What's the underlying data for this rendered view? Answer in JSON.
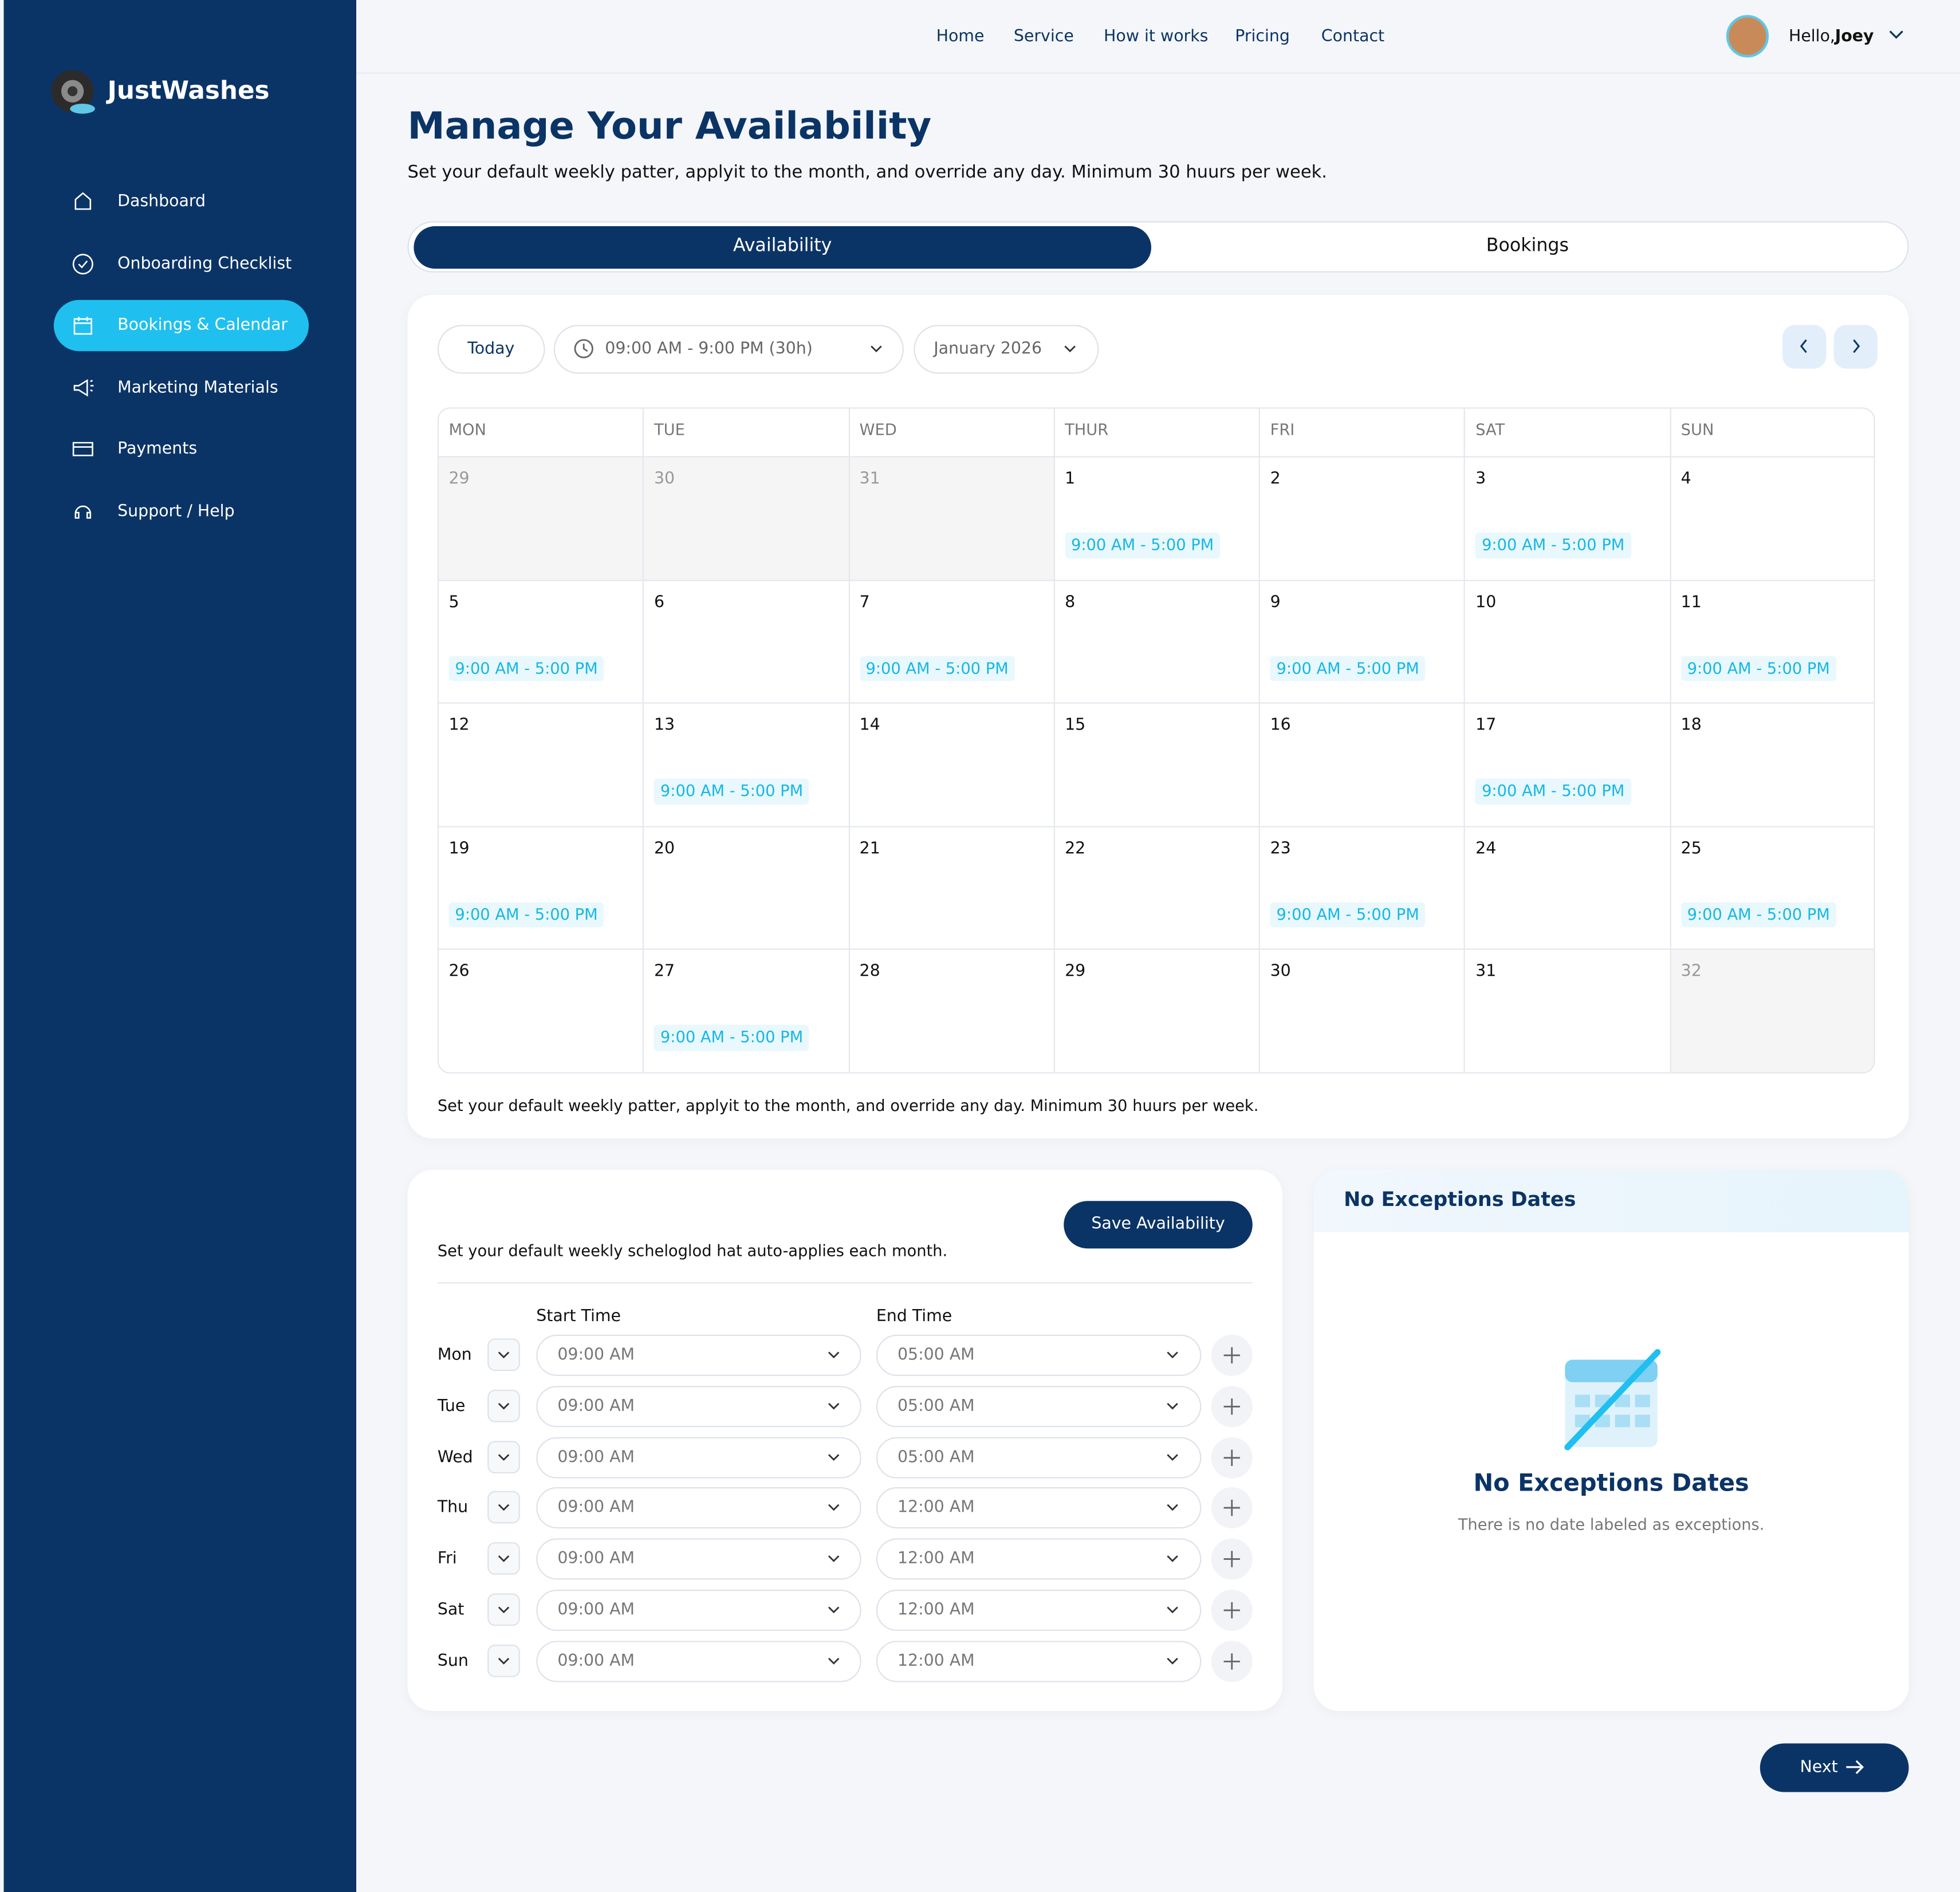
{
  "brand": "JustWashes",
  "sidebar": {
    "items": [
      "Dashboard",
      "Onboarding Checklist",
      "Bookings & Calendar",
      "Marketing Materials",
      "Payments",
      "Support / Help"
    ],
    "active": 2
  },
  "topnav": {
    "links": [
      "Home",
      "Service",
      "How it works",
      "Pricing",
      "Contact"
    ],
    "greeting": "Hello,",
    "user": "Joey"
  },
  "header": {
    "title": "Manage Your Availability",
    "subtitle": "Set your default weekly patter, applyit to the month, and override any day. Minimum 30 huurs per week."
  },
  "tabs": {
    "items": [
      "Availability",
      "Bookings"
    ],
    "active": 0
  },
  "toolbar": {
    "today": "Today",
    "time_range": "09:00 AM - 9:00 PM (30h)",
    "month": "January 2026"
  },
  "calendar": {
    "weekdays": [
      "MON",
      "TUE",
      "WED",
      "THUR",
      "FRI",
      "SAT",
      "SUN"
    ],
    "weeks": [
      [
        {
          "day": "29",
          "muted": true
        },
        {
          "day": "30",
          "muted": true
        },
        {
          "day": "31",
          "muted": true
        },
        {
          "day": "1",
          "slot": "9:00 AM - 5:00 PM"
        },
        {
          "day": "2"
        },
        {
          "day": "3",
          "slot": "9:00 AM - 5:00 PM"
        },
        {
          "day": "4"
        }
      ],
      [
        {
          "day": "5",
          "slot": "9:00 AM - 5:00 PM"
        },
        {
          "day": "6"
        },
        {
          "day": "7",
          "slot": "9:00 AM - 5:00 PM"
        },
        {
          "day": "8"
        },
        {
          "day": "9",
          "slot": "9:00 AM - 5:00 PM"
        },
        {
          "day": "10"
        },
        {
          "day": "11",
          "slot": "9:00 AM - 5:00 PM"
        }
      ],
      [
        {
          "day": "12"
        },
        {
          "day": "13",
          "slot": "9:00 AM - 5:00 PM"
        },
        {
          "day": "14"
        },
        {
          "day": "15"
        },
        {
          "day": "16"
        },
        {
          "day": "17",
          "slot": "9:00 AM - 5:00 PM"
        },
        {
          "day": "18"
        }
      ],
      [
        {
          "day": "19",
          "slot": "9:00 AM - 5:00 PM"
        },
        {
          "day": "20"
        },
        {
          "day": "21"
        },
        {
          "day": "22"
        },
        {
          "day": "23",
          "slot": "9:00 AM - 5:00 PM"
        },
        {
          "day": "24"
        },
        {
          "day": "25",
          "slot": "9:00 AM - 5:00 PM"
        }
      ],
      [
        {
          "day": "26"
        },
        {
          "day": "27",
          "slot": "9:00 AM - 5:00 PM"
        },
        {
          "day": "28"
        },
        {
          "day": "29"
        },
        {
          "day": "30"
        },
        {
          "day": "31"
        },
        {
          "day": "32",
          "muted": true
        }
      ]
    ],
    "note": "Set your default weekly patter, applyit to the month, and override any day. Minimum 30 huurs per week."
  },
  "schedule": {
    "save": "Save Availability",
    "description": "Set your default weekly schelogl​od hat auto-applies each month.",
    "start_header": "Start Time",
    "end_header": "End Time",
    "rows": [
      {
        "day": "Mon",
        "start": "09:00 AM",
        "end": "05:00 AM"
      },
      {
        "day": "Tue",
        "start": "09:00 AM",
        "end": "05:00 AM"
      },
      {
        "day": "Wed",
        "start": "09:00 AM",
        "end": "05:00 AM"
      },
      {
        "day": "Thu",
        "start": "09:00 AM",
        "end": "12:00 AM"
      },
      {
        "day": "Fri",
        "start": "09:00 AM",
        "end": "12:00 AM"
      },
      {
        "day": "Sat",
        "start": "09:00 AM",
        "end": "12:00 AM"
      },
      {
        "day": "Sun",
        "start": "09:00 AM",
        "end": "12:00 AM"
      }
    ]
  },
  "exceptions": {
    "header": "No Exceptions Dates",
    "title": "No Exceptions Dates",
    "message": "There is no date labeled as exceptions."
  },
  "next": "Next"
}
